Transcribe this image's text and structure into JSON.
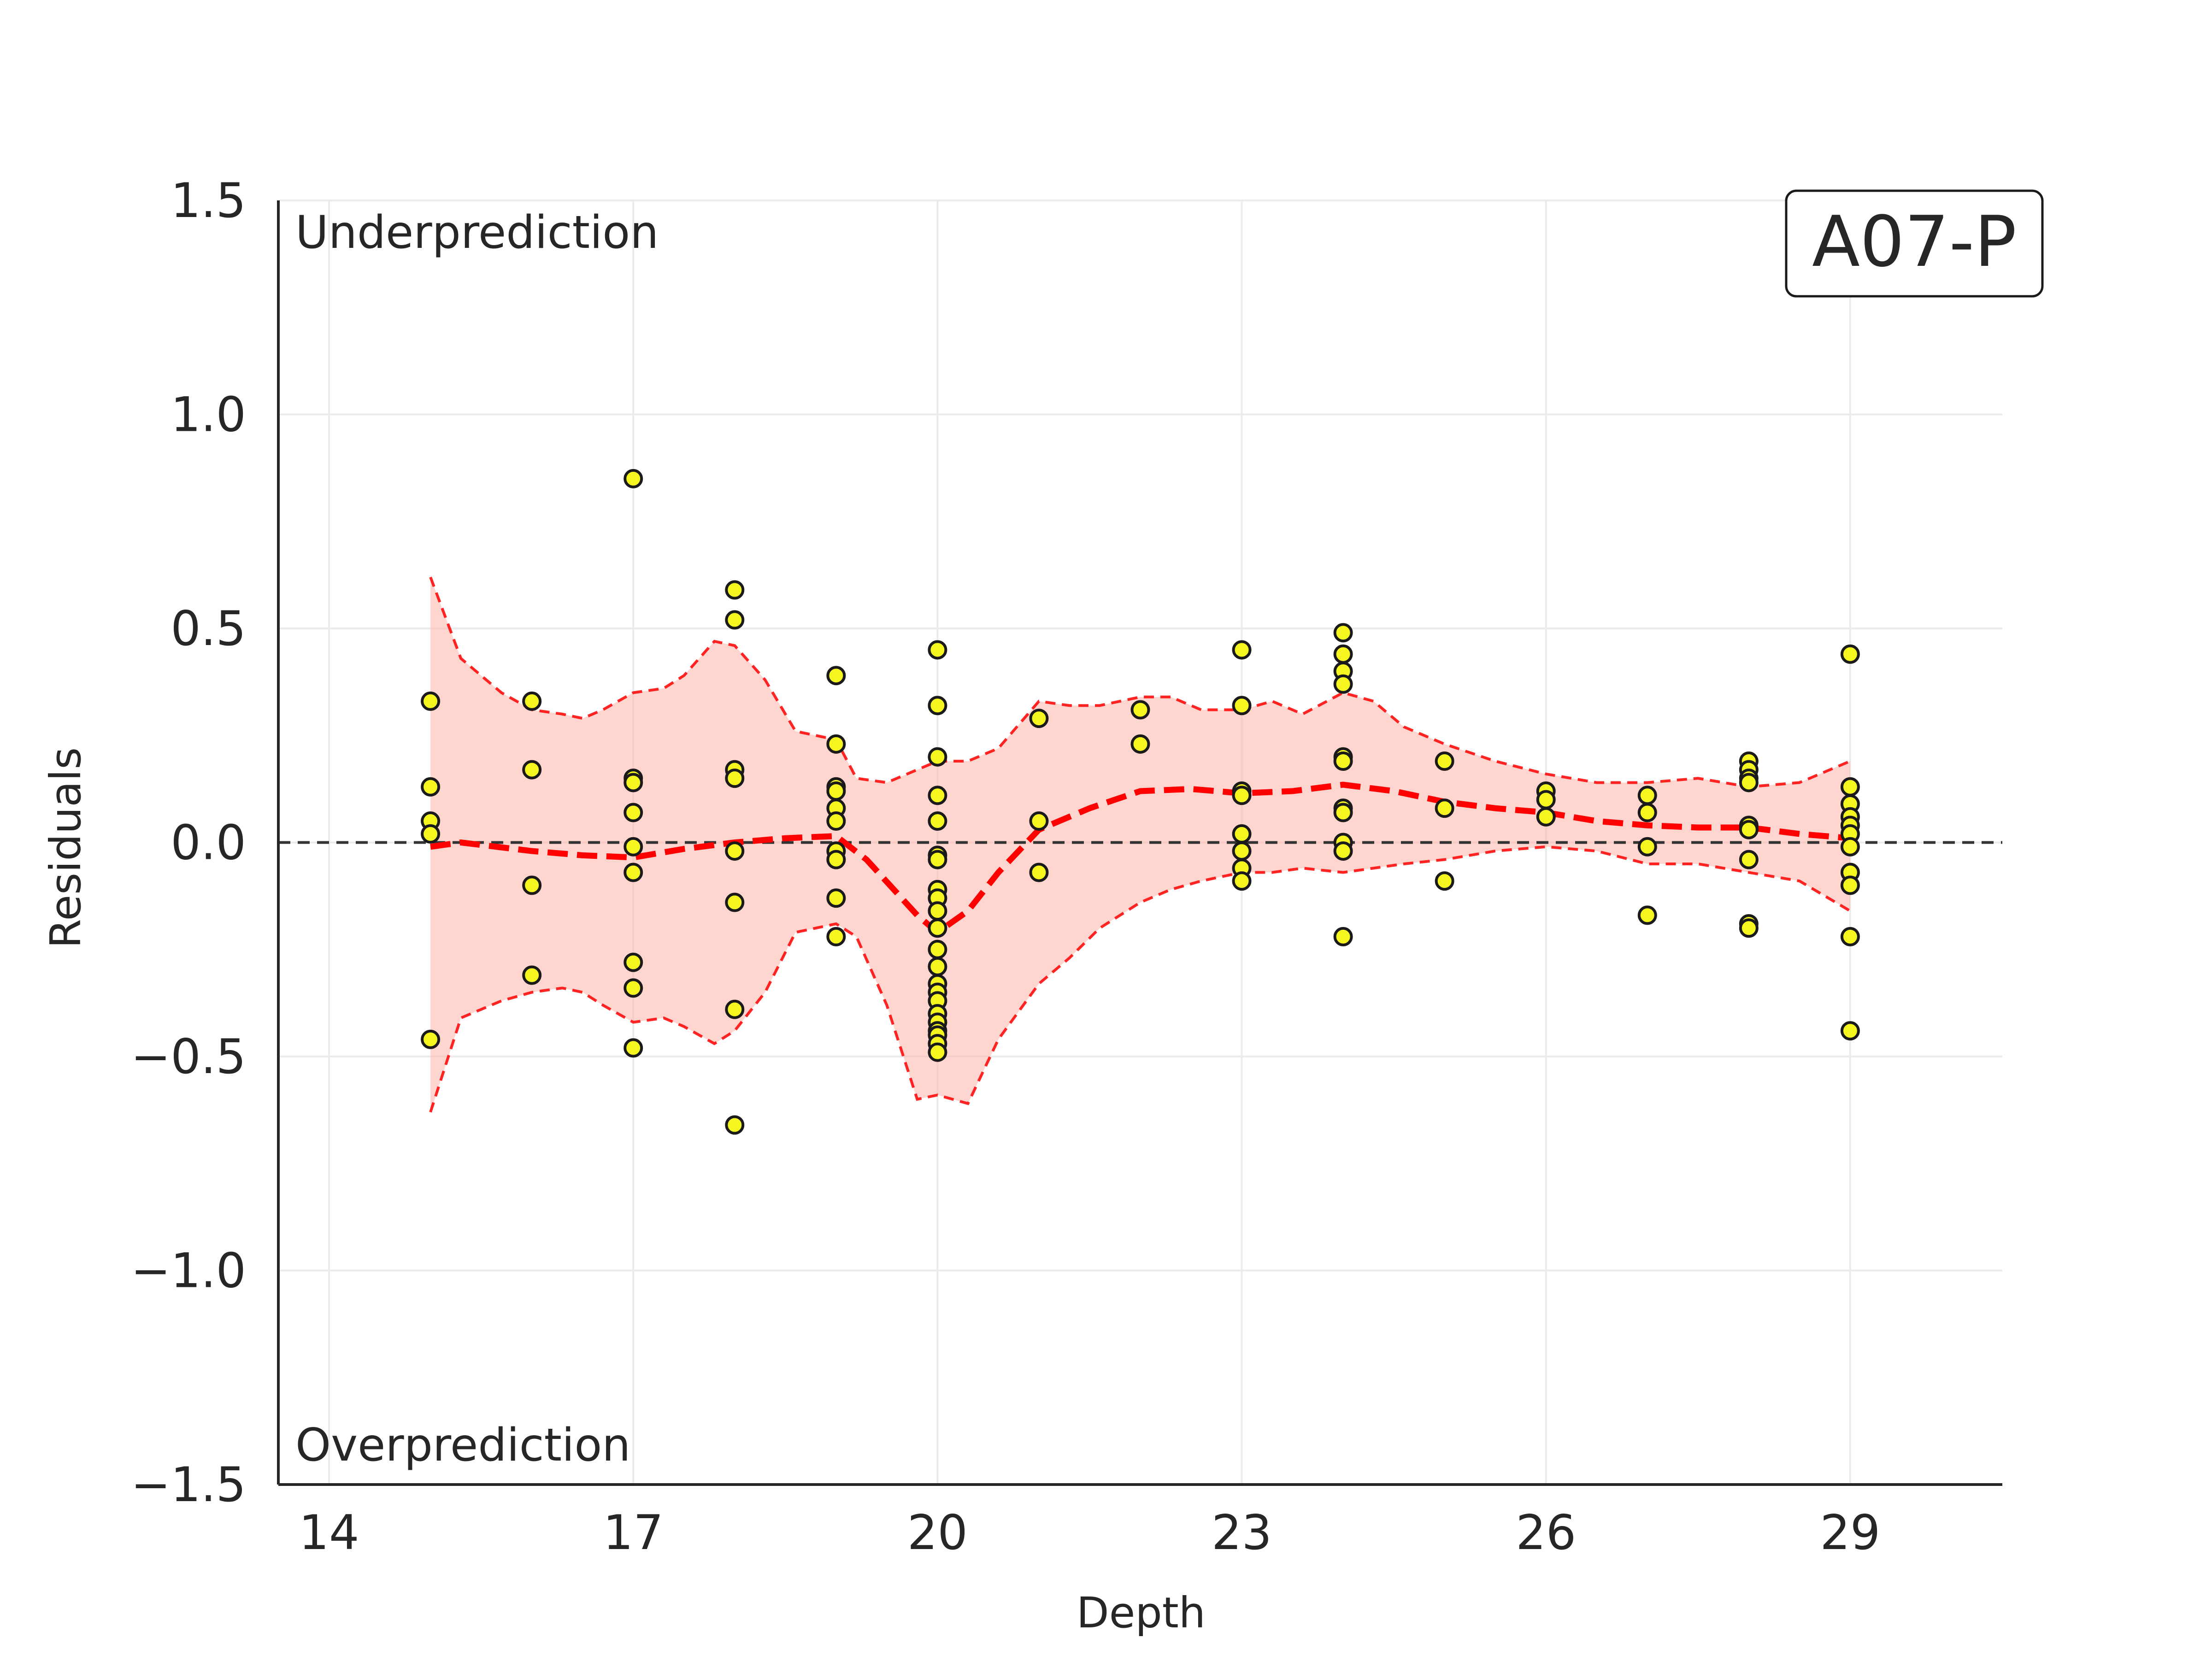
{
  "chart_data": {
    "type": "scatter",
    "xlabel": "Depth",
    "ylabel": "Residuals",
    "xlim": [
      13.5,
      30.5
    ],
    "ylim": [
      -1.5,
      1.5
    ],
    "xticks": [
      14,
      17,
      20,
      23,
      26,
      29
    ],
    "yticks": [
      -1.5,
      -1.0,
      -0.5,
      0.0,
      0.5,
      1.0,
      1.5
    ],
    "ytick_labels": [
      "−1.5",
      "−1.0",
      "−0.5",
      "0.0",
      "0.5",
      "1.0",
      "1.5"
    ],
    "grid": true,
    "reference_line": 0.0,
    "annotations": {
      "top": "Underprediction",
      "bottom": "Overprediction"
    },
    "badge": "A07-P",
    "colors": {
      "points": "#f5f51f",
      "point_edge": "#1a1a1a",
      "trend": "#ff0000",
      "band": "#ffb3a8",
      "reference": "#333333"
    },
    "points": [
      [
        15,
        0.33
      ],
      [
        15,
        0.13
      ],
      [
        15,
        0.05
      ],
      [
        15,
        0.02
      ],
      [
        15,
        -0.46
      ],
      [
        16,
        0.33
      ],
      [
        16,
        0.17
      ],
      [
        16,
        -0.1
      ],
      [
        16,
        -0.31
      ],
      [
        17,
        0.85
      ],
      [
        17,
        0.15
      ],
      [
        17,
        0.14
      ],
      [
        17,
        0.07
      ],
      [
        17,
        -0.01
      ],
      [
        17,
        -0.07
      ],
      [
        17,
        -0.28
      ],
      [
        17,
        -0.34
      ],
      [
        17,
        -0.48
      ],
      [
        18,
        0.59
      ],
      [
        18,
        0.52
      ],
      [
        18,
        0.17
      ],
      [
        18,
        0.15
      ],
      [
        18,
        -0.02
      ],
      [
        18,
        -0.14
      ],
      [
        18,
        -0.39
      ],
      [
        18,
        -0.66
      ],
      [
        19,
        0.39
      ],
      [
        19,
        0.23
      ],
      [
        19,
        0.13
      ],
      [
        19,
        0.12
      ],
      [
        19,
        0.08
      ],
      [
        19,
        0.05
      ],
      [
        19,
        -0.02
      ],
      [
        19,
        -0.04
      ],
      [
        19,
        -0.13
      ],
      [
        19,
        -0.22
      ],
      [
        20,
        0.45
      ],
      [
        20,
        0.32
      ],
      [
        20,
        0.2
      ],
      [
        20,
        0.11
      ],
      [
        20,
        0.05
      ],
      [
        20,
        -0.03
      ],
      [
        20,
        -0.04
      ],
      [
        20,
        -0.11
      ],
      [
        20,
        -0.13
      ],
      [
        20,
        -0.16
      ],
      [
        20,
        -0.2
      ],
      [
        20,
        -0.25
      ],
      [
        20,
        -0.29
      ],
      [
        20,
        -0.33
      ],
      [
        20,
        -0.35
      ],
      [
        20,
        -0.37
      ],
      [
        20,
        -0.4
      ],
      [
        20,
        -0.42
      ],
      [
        20,
        -0.44
      ],
      [
        20,
        -0.45
      ],
      [
        20,
        -0.47
      ],
      [
        20,
        -0.49
      ],
      [
        21,
        0.29
      ],
      [
        21,
        0.05
      ],
      [
        21,
        -0.07
      ],
      [
        22,
        0.31
      ],
      [
        22,
        0.23
      ],
      [
        23,
        0.45
      ],
      [
        23,
        0.32
      ],
      [
        23,
        0.12
      ],
      [
        23,
        0.11
      ],
      [
        23,
        0.02
      ],
      [
        23,
        -0.02
      ],
      [
        23,
        -0.06
      ],
      [
        23,
        -0.09
      ],
      [
        24,
        0.49
      ],
      [
        24,
        0.44
      ],
      [
        24,
        0.4
      ],
      [
        24,
        0.37
      ],
      [
        24,
        0.2
      ],
      [
        24,
        0.19
      ],
      [
        24,
        0.08
      ],
      [
        24,
        0.07
      ],
      [
        24,
        0.0
      ],
      [
        24,
        -0.02
      ],
      [
        24,
        -0.22
      ],
      [
        25,
        0.19
      ],
      [
        25,
        0.08
      ],
      [
        25,
        -0.09
      ],
      [
        26,
        0.12
      ],
      [
        26,
        0.1
      ],
      [
        26,
        0.06
      ],
      [
        27,
        0.11
      ],
      [
        27,
        0.07
      ],
      [
        27,
        -0.01
      ],
      [
        27,
        -0.17
      ],
      [
        28,
        0.19
      ],
      [
        28,
        0.17
      ],
      [
        28,
        0.15
      ],
      [
        28,
        0.14
      ],
      [
        28,
        0.04
      ],
      [
        28,
        0.03
      ],
      [
        28,
        -0.04
      ],
      [
        28,
        -0.19
      ],
      [
        28,
        -0.2
      ],
      [
        29,
        0.44
      ],
      [
        29,
        0.13
      ],
      [
        29,
        0.09
      ],
      [
        29,
        0.06
      ],
      [
        29,
        0.04
      ],
      [
        29,
        0.02
      ],
      [
        29,
        -0.01
      ],
      [
        29,
        -0.07
      ],
      [
        29,
        -0.1
      ],
      [
        29,
        -0.22
      ],
      [
        29,
        -0.44
      ]
    ],
    "trend": {
      "x": [
        15,
        15.3,
        16,
        16.5,
        17,
        17.5,
        18,
        18.5,
        19,
        19.3,
        19.8,
        20,
        20.3,
        20.6,
        21,
        21.5,
        22,
        22.5,
        23,
        23.5,
        24,
        24.5,
        25,
        25.5,
        26,
        26.5,
        27,
        27.5,
        28,
        28.5,
        29
      ],
      "y": [
        -0.01,
        0.0,
        -0.02,
        -0.03,
        -0.035,
        -0.015,
        0.0,
        0.01,
        0.015,
        -0.04,
        -0.17,
        -0.21,
        -0.16,
        -0.07,
        0.03,
        0.08,
        0.12,
        0.125,
        0.115,
        0.12,
        0.135,
        0.12,
        0.095,
        0.08,
        0.07,
        0.05,
        0.04,
        0.035,
        0.035,
        0.02,
        0.01
      ]
    },
    "band": {
      "x": [
        15,
        15.3,
        15.7,
        16,
        16.3,
        16.5,
        16.7,
        17,
        17.3,
        17.5,
        17.8,
        18,
        18.3,
        18.6,
        19,
        19.2,
        19.5,
        19.8,
        20,
        20.3,
        20.6,
        21,
        21.3,
        21.6,
        22,
        22.3,
        22.6,
        23,
        23.3,
        23.6,
        24,
        24.3,
        24.6,
        25,
        25.5,
        26,
        26.5,
        27,
        27.5,
        28,
        28.5,
        29
      ],
      "upper": [
        0.62,
        0.43,
        0.35,
        0.31,
        0.3,
        0.29,
        0.31,
        0.35,
        0.36,
        0.39,
        0.47,
        0.46,
        0.38,
        0.26,
        0.24,
        0.15,
        0.14,
        0.17,
        0.19,
        0.19,
        0.22,
        0.33,
        0.32,
        0.32,
        0.34,
        0.34,
        0.31,
        0.31,
        0.33,
        0.3,
        0.35,
        0.33,
        0.27,
        0.23,
        0.19,
        0.16,
        0.14,
        0.14,
        0.15,
        0.13,
        0.14,
        0.19
      ],
      "lower": [
        -0.63,
        -0.41,
        -0.37,
        -0.35,
        -0.34,
        -0.35,
        -0.38,
        -0.42,
        -0.41,
        -0.43,
        -0.47,
        -0.44,
        -0.35,
        -0.21,
        -0.19,
        -0.22,
        -0.38,
        -0.6,
        -0.59,
        -0.61,
        -0.46,
        -0.33,
        -0.27,
        -0.2,
        -0.14,
        -0.11,
        -0.09,
        -0.07,
        -0.07,
        -0.06,
        -0.07,
        -0.06,
        -0.05,
        -0.04,
        -0.02,
        -0.01,
        -0.02,
        -0.05,
        -0.05,
        -0.07,
        -0.09,
        -0.16
      ]
    }
  }
}
